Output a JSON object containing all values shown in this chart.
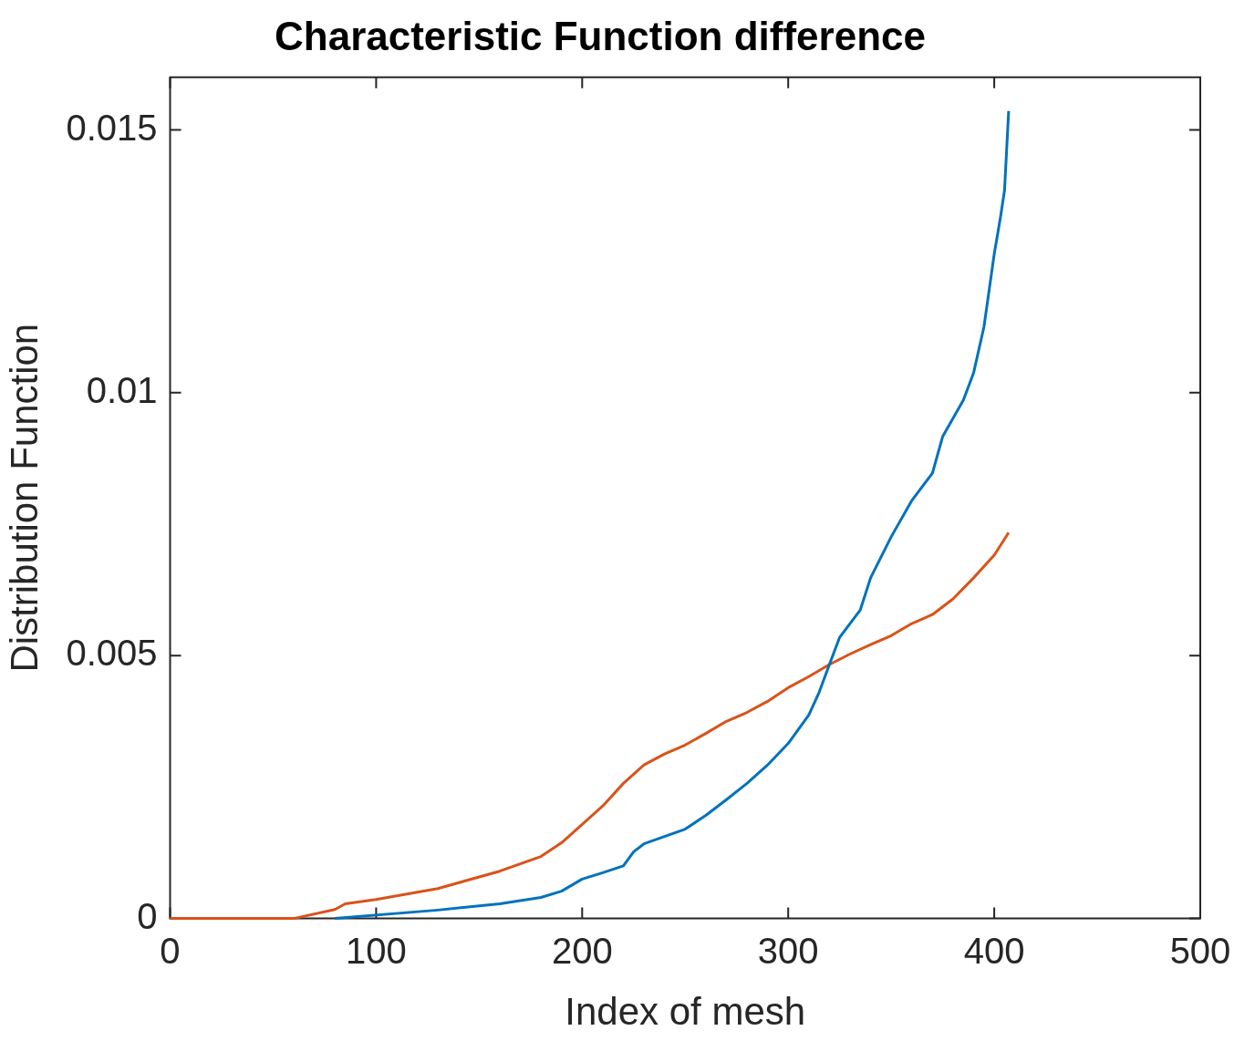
{
  "chart_data": {
    "type": "line",
    "title": "Characteristic Function difference",
    "xlabel": "Index of mesh",
    "ylabel": "Distribution Function",
    "xlim": [
      0,
      500
    ],
    "xticks": [
      0,
      100,
      200,
      300,
      400,
      500
    ],
    "ylim": [
      0,
      0.016
    ],
    "yticks": [
      0,
      0.005,
      0.01,
      0.015
    ],
    "grid": false,
    "legend": false,
    "marker": "none",
    "line_style": "solid",
    "series": [
      {
        "color": "#0072bd",
        "x": [
          80,
          130,
          160,
          180,
          190,
          200,
          210,
          220,
          225,
          230,
          250,
          260,
          270,
          280,
          290,
          300,
          310,
          315,
          320,
          325,
          335,
          340,
          350,
          360,
          370,
          375,
          385,
          390,
          395,
          400,
          403,
          405,
          407
        ],
        "values": [
          0,
          0.00016,
          0.00028,
          0.0004,
          0.00052,
          0.00075,
          0.00087,
          0.001,
          0.00127,
          0.00142,
          0.0017,
          0.00196,
          0.00226,
          0.00257,
          0.00292,
          0.00333,
          0.00387,
          0.0043,
          0.00483,
          0.00535,
          0.00587,
          0.00648,
          0.00726,
          0.00795,
          0.00847,
          0.00917,
          0.00986,
          0.01038,
          0.01125,
          0.01264,
          0.01333,
          0.01385,
          0.01536
        ]
      },
      {
        "color": "#d95319",
        "x": [
          0,
          60,
          80,
          85,
          100,
          130,
          160,
          180,
          190,
          200,
          210,
          220,
          230,
          240,
          250,
          260,
          270,
          280,
          290,
          300,
          310,
          320,
          330,
          340,
          350,
          360,
          370,
          380,
          390,
          400,
          407
        ],
        "values": [
          0,
          0,
          0.00017,
          0.00028,
          0.00036,
          0.00057,
          0.0009,
          0.00118,
          0.00144,
          0.00179,
          0.00214,
          0.00257,
          0.00292,
          0.00313,
          0.0033,
          0.00352,
          0.00375,
          0.00392,
          0.00413,
          0.00439,
          0.0046,
          0.00483,
          0.00503,
          0.00521,
          0.00538,
          0.00561,
          0.00578,
          0.00608,
          0.00648,
          0.00691,
          0.00734
        ]
      }
    ]
  }
}
